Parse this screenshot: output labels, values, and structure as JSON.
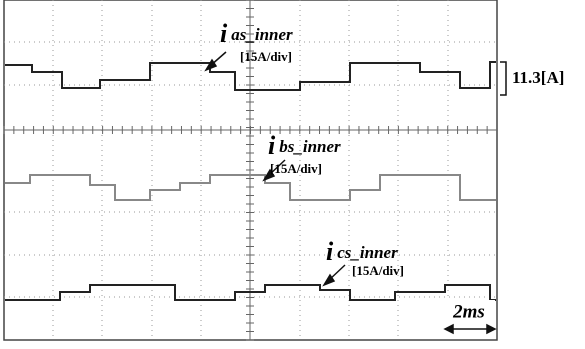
{
  "traces": [
    {
      "symbol": "i",
      "subscript": "as_inner",
      "scale": "[15A/div]"
    },
    {
      "symbol": "i",
      "subscript": "bs_inner",
      "scale": "[15A/div]"
    },
    {
      "symbol": "i",
      "subscript": "cs_inner",
      "scale": "[15A/div]"
    }
  ],
  "amplitude_label": "11.3[A]",
  "time_scale": "2ms"
}
